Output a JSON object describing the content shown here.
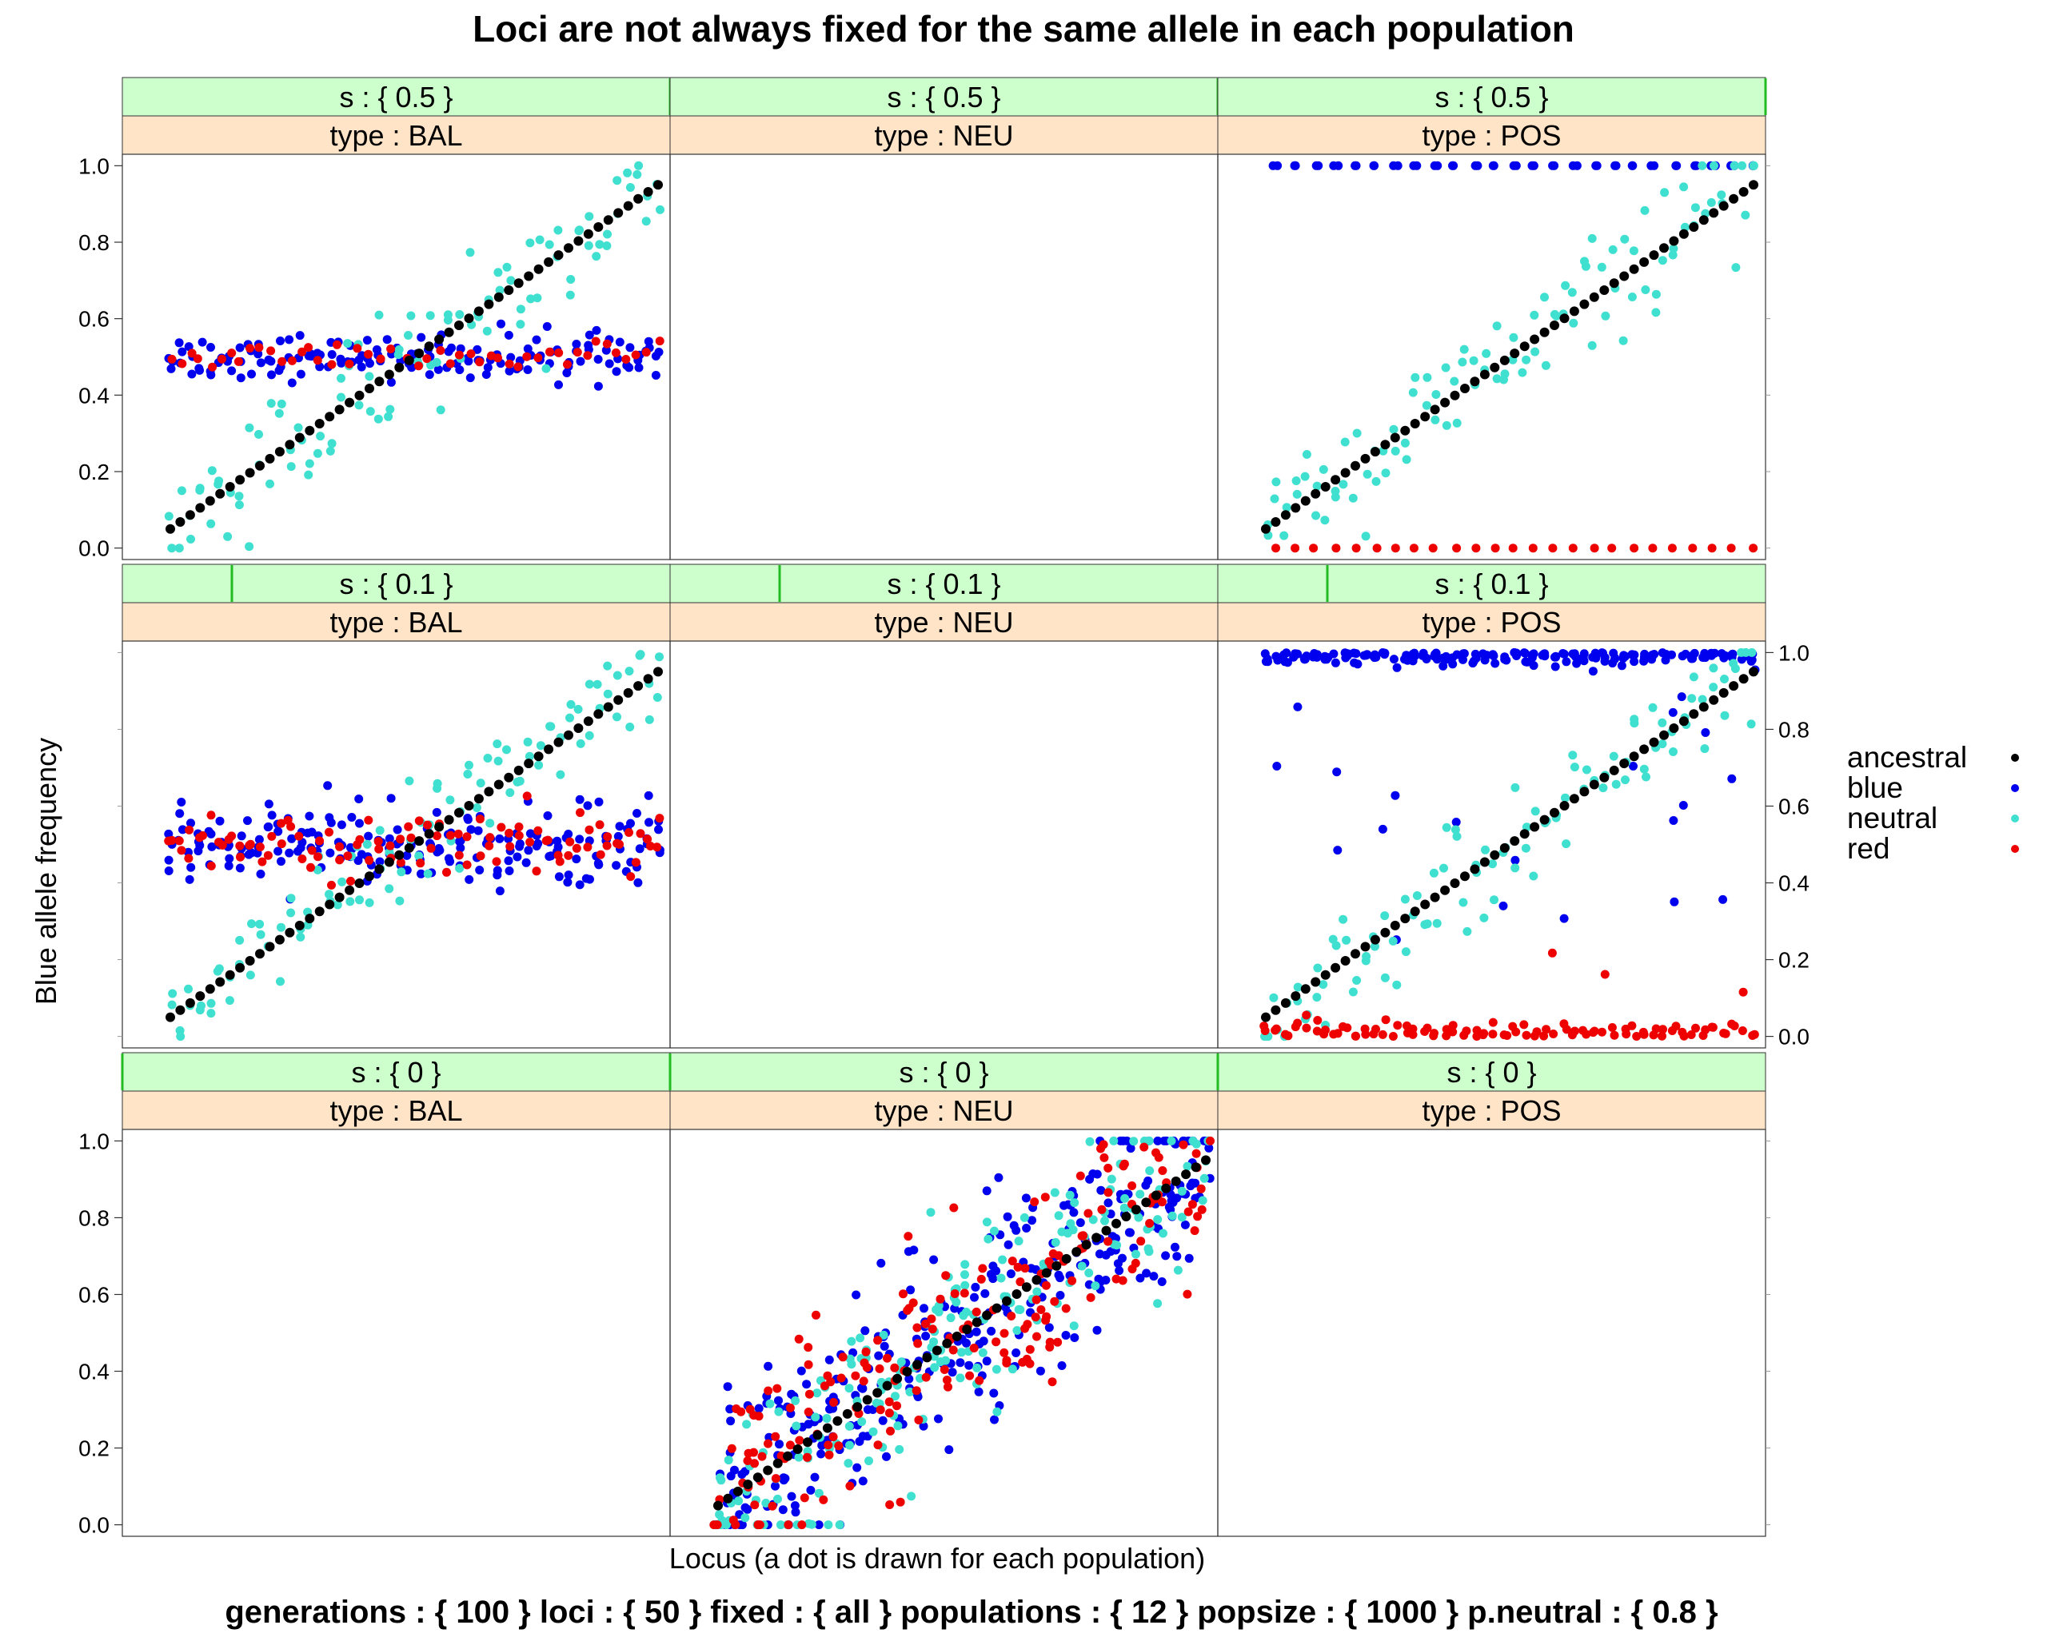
{
  "title": "Loci are not always fixed for the same allele in each population",
  "xlabel": "Locus (a dot is drawn for each population)",
  "ylabel": "Blue allele frequency",
  "footer": "generations : { 100 } loci : { 50 } fixed : { all } populations : { 12 } popsize : { 1000 } p.neutral : { 0.8 }",
  "colors": {
    "ancestral": "#000000",
    "blue": "#0000ee",
    "neutral": "#40e0d0",
    "red": "#ee0000",
    "strip_s": "#ccffcc",
    "strip_type": "#ffe4c8",
    "strip_s_indicator": "#22bb22"
  },
  "legend": [
    {
      "label": "ancestral",
      "color": "#000000"
    },
    {
      "label": "blue",
      "color": "#0000ee"
    },
    {
      "label": "neutral",
      "color": "#40e0d0"
    },
    {
      "label": "red",
      "color": "#ee0000"
    }
  ],
  "chart_data": {
    "type": "scatter",
    "title": "Loci are not always fixed for the same allele in each population",
    "xlabel": "Locus (a dot is drawn for each population)",
    "ylabel": "Blue allele frequency",
    "ylim": [
      -0.03,
      1.03
    ],
    "yticks": [
      0.0,
      0.2,
      0.4,
      0.6,
      0.8,
      1.0
    ],
    "ytick_labels": [
      "0.0",
      "0.2",
      "0.4",
      "0.6",
      "0.8",
      "1.0"
    ],
    "x_range": [
      1,
      50
    ],
    "series_names": [
      "ancestral",
      "blue",
      "neutral",
      "red"
    ],
    "row_strip_labels": [
      "s : { 0.5 }",
      "s : { 0.1 }",
      "s : { 0 }"
    ],
    "column_strip_labels": [
      "type : BAL",
      "type : NEU",
      "type : POS"
    ],
    "panels": [
      {
        "s": "s : { 0.5 }",
        "type": "type : BAL",
        "empty": false,
        "ancestral_range": [
          0.05,
          0.95
        ],
        "blue": "balanced near 0.5 (0.45-0.55)",
        "red": "balanced near 0.5 (0.47-0.53)",
        "neutral": "scatter around ancestral frequency"
      },
      {
        "s": "s : { 0.5 }",
        "type": "type : NEU",
        "empty": true
      },
      {
        "s": "s : { 0.5 }",
        "type": "type : POS",
        "empty": false,
        "ancestral_range": [
          0.05,
          0.95
        ],
        "blue": "fixed at 1.0",
        "red": "fixed at 0.0",
        "neutral": "scatter around ancestral frequency"
      },
      {
        "s": "s : { 0.1 }",
        "type": "type : BAL",
        "empty": false,
        "ancestral_range": [
          0.05,
          0.95
        ],
        "blue": "spread 0.40-0.60",
        "red": "spread 0.42-0.58",
        "neutral": "scatter around ancestral frequency"
      },
      {
        "s": "s : { 0.1 }",
        "type": "type : NEU",
        "empty": true
      },
      {
        "s": "s : { 0.1 }",
        "type": "type : POS",
        "empty": false,
        "ancestral_range": [
          0.05,
          0.95
        ],
        "blue": "mostly near 1.0, some low loci",
        "red": "mostly near 0.0 (0.0-0.32)",
        "neutral": "scatter around ancestral frequency"
      },
      {
        "s": "s : { 0 }",
        "type": "type : BAL",
        "empty": true
      },
      {
        "s": "s : { 0 }",
        "type": "type : NEU",
        "empty": false,
        "ancestral_range": [
          0.04,
          0.95
        ],
        "blue": "broad drift around ancestral",
        "red": "broad drift around ancestral",
        "neutral": "broad drift around ancestral"
      },
      {
        "s": "s : { 0 }",
        "type": "type : POS",
        "empty": true
      }
    ]
  }
}
